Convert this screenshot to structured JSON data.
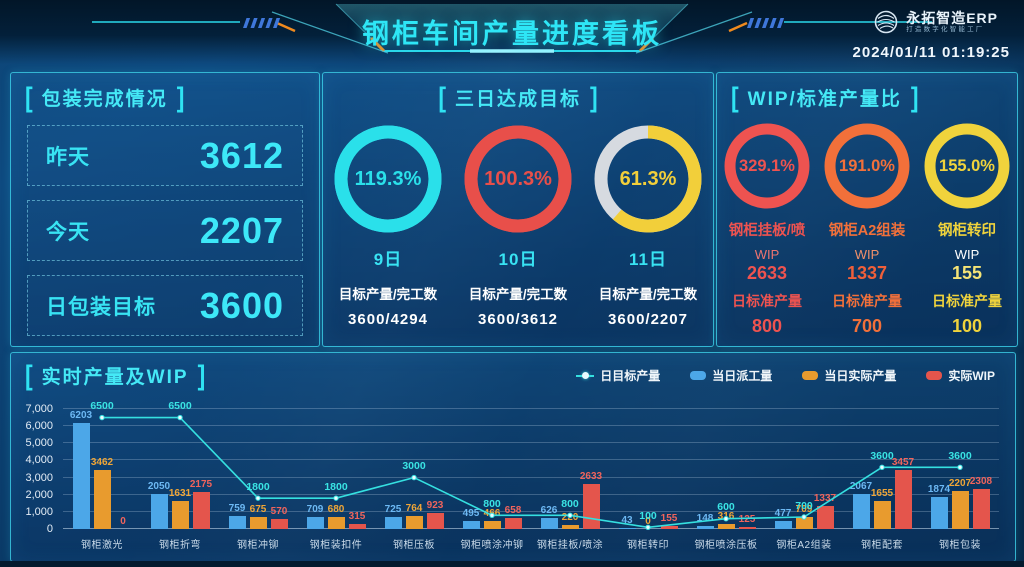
{
  "ui": {
    "bracket_left": "[",
    "bracket_right": "]"
  },
  "header": {
    "title": "钢柜车间产量进度看板",
    "logo_text": "永拓智造ERP",
    "logo_subtitle": "打造数字化智能工厂",
    "datetime": "2024/01/11 01:19:25"
  },
  "packing_panel": {
    "title": "包装完成情况",
    "stats": [
      {
        "label": "昨天",
        "value": "3612"
      },
      {
        "label": "今天",
        "value": "2207"
      },
      {
        "label": "日包装目标",
        "value": "3600"
      }
    ]
  },
  "three_day_panel": {
    "title": "三日达成目标",
    "items": [
      {
        "percent": "119.3%",
        "pct_value": 119.3,
        "day": "9日",
        "caption": "目标产量/完工数",
        "ratio": "3600/4294",
        "color": "#2ae0ea",
        "rest_color": "#2ae0ea"
      },
      {
        "percent": "100.3%",
        "pct_value": 100.3,
        "day": "10日",
        "caption": "目标产量/完工数",
        "ratio": "3600/3612",
        "color": "#e84f4a",
        "rest_color": "#e84f4a"
      },
      {
        "percent": "61.3%",
        "pct_value": 61.3,
        "day": "11日",
        "caption": "目标产量/完工数",
        "ratio": "3600/2207",
        "color": "#f2cf3a",
        "rest_color": "#d6dae0"
      }
    ]
  },
  "wip_panel": {
    "title": "WIP/标准产量比",
    "items": [
      {
        "percent": "329.1%",
        "name": "钢柜挂板/喷",
        "wip_label": "WIP",
        "wip": "2633",
        "std_label": "日标准产量",
        "std": "800",
        "color": "#ee5350",
        "name_color": "#ee5350",
        "wip_label_color": "#ee7470",
        "wip_value_color": "#ee5350",
        "std_color": "#ee5350"
      },
      {
        "percent": "191.0%",
        "name": "钢柜A2组装",
        "wip_label": "WIP",
        "wip": "1337",
        "std_label": "日标准产量",
        "std": "700",
        "color": "#f2703a",
        "name_color": "#f2703a",
        "wip_label_color": "#f0906a",
        "wip_value_color": "#ef5f3a",
        "std_color": "#f2703a"
      },
      {
        "percent": "155.0%",
        "name": "钢柜转印",
        "wip_label": "WIP",
        "wip": "155",
        "std_label": "日标准产量",
        "std": "100",
        "color": "#f0d33c",
        "name_color": "#f0d33c",
        "wip_label_color": "#ffffff",
        "wip_value_color": "#f5e476",
        "std_color": "#f0d33c"
      }
    ]
  },
  "chart_panel": {
    "title": "实时产量及WIP",
    "legend": [
      {
        "label": "日目标产量",
        "type": "line",
        "color": "#35e0e0"
      },
      {
        "label": "当日派工量",
        "type": "bar",
        "color": "#4ca7e8"
      },
      {
        "label": "当日实际产量",
        "type": "bar",
        "color": "#e89b2e"
      },
      {
        "label": "实际WIP",
        "type": "bar",
        "color": "#e4554c"
      }
    ]
  },
  "chart_data": {
    "type": "bar+line",
    "title": "实时产量及WIP",
    "categories": [
      "钢柜激光",
      "钢柜折弯",
      "钢柜冲铆",
      "钢柜装扣件",
      "钢柜压板",
      "钢柜喷涂冲铆",
      "钢柜挂板/喷涂",
      "钢柜转印",
      "钢柜喷涂压板",
      "钢柜A2组装",
      "钢柜配套",
      "钢柜包装"
    ],
    "series": [
      {
        "name": "日目标产量",
        "type": "line",
        "color": "#35e0e0",
        "label_color": "#3ae4e4",
        "values": [
          6500,
          6500,
          1800,
          1800,
          3000,
          800,
          800,
          100,
          600,
          700,
          3600,
          3600
        ]
      },
      {
        "name": "当日派工量",
        "type": "bar",
        "color": "#4ca7e8",
        "label_color": "#6db9f4",
        "values": [
          6203,
          2050,
          759,
          709,
          725,
          495,
          626,
          43,
          148,
          477,
          2067,
          1874
        ]
      },
      {
        "name": "当日实际产量",
        "type": "bar",
        "color": "#e89b2e",
        "label_color": "#f0a637",
        "values": [
          3462,
          1631,
          675,
          680,
          764,
          466,
          220,
          0,
          316,
          709,
          1655,
          2207
        ]
      },
      {
        "name": "实际WIP",
        "type": "bar",
        "color": "#e4554c",
        "label_color": "#f0645c",
        "values": [
          0,
          2175,
          570,
          315,
          923,
          658,
          2633,
          155,
          125,
          1337,
          3457,
          2308
        ]
      }
    ],
    "ylim": [
      0,
      7000
    ],
    "ytick_step": 1000,
    "grid": true,
    "legend_position": "top-right"
  }
}
